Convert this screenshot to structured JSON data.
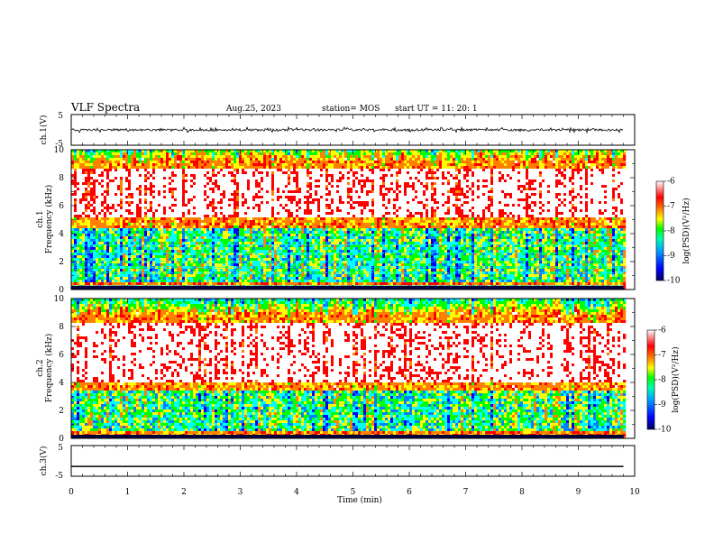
{
  "header": {
    "title": "VLF Spectra",
    "date": "Aug.25, 2023",
    "station": "station= MOS",
    "start": "start  UT  =   11: 20: 1"
  },
  "chart_data": [
    {
      "type": "line",
      "panel": "ch1-waveform",
      "ylabel": "ch.1(V)",
      "yticks": [
        "5",
        "-5"
      ],
      "ylim": [
        -5,
        5
      ],
      "x": [
        0,
        10
      ],
      "y_level": 0,
      "note_visible": "near-flat noisy trace around 0 V over 0-9.8 min"
    },
    {
      "type": "heatmap",
      "panel": "ch1-spectrogram",
      "ylabel": "ch.1 Frequency (kHz)",
      "ylabel_line1": "ch.1",
      "ylabel_line2": "Frequency (kHz)",
      "ylim": [
        0,
        10
      ],
      "yticks": [
        "0",
        "2",
        "4",
        "6",
        "8",
        "10"
      ],
      "xlim": [
        0,
        10
      ],
      "data_end_min": 9.8,
      "colorbar": {
        "label": "log(PSD)(V²/Hz)",
        "range": [
          -10,
          -6
        ],
        "ticks": [
          "-6",
          "-7",
          "-8",
          "-9",
          "-10"
        ]
      },
      "dominant_band_khz": [
        4.5,
        9.2
      ],
      "lines_khz": [
        0.3,
        1.2,
        1.6,
        2.0,
        2.6,
        3.2
      ]
    },
    {
      "type": "heatmap",
      "panel": "ch2-spectrogram",
      "ylabel": "ch.2 Frequency (kHz)",
      "ylabel_line1": "ch.2",
      "ylabel_line2": "Frequency (kHz)",
      "ylim": [
        0,
        10
      ],
      "yticks": [
        "0",
        "2",
        "4",
        "6",
        "8",
        "10"
      ],
      "xlim": [
        0,
        10
      ],
      "data_end_min": 9.8,
      "colorbar": {
        "label": "log(PSD)(V²/Hz)",
        "range": [
          -10,
          -6
        ],
        "ticks": [
          "-6",
          "-7",
          "-8",
          "-9",
          "-10"
        ]
      },
      "dominant_band_khz": [
        3.5,
        8.8
      ]
    },
    {
      "type": "line",
      "panel": "ch3-waveform",
      "ylabel": "ch.3(V)",
      "yticks": [
        "5",
        "-5"
      ],
      "ylim": [
        -5,
        5
      ],
      "x": [
        0,
        9.8
      ],
      "y": [
        -1.8,
        -1.8
      ]
    }
  ],
  "xaxis": {
    "label": "Time  (min)",
    "ticks": [
      "0",
      "1",
      "2",
      "3",
      "4",
      "5",
      "6",
      "7",
      "8",
      "9",
      "10"
    ]
  },
  "colors": {
    "scale": [
      "#000080",
      "#0000ff",
      "#0080ff",
      "#00ffff",
      "#00ff00",
      "#ffff00",
      "#ff8000",
      "#ff0000",
      "#ffffff"
    ]
  }
}
